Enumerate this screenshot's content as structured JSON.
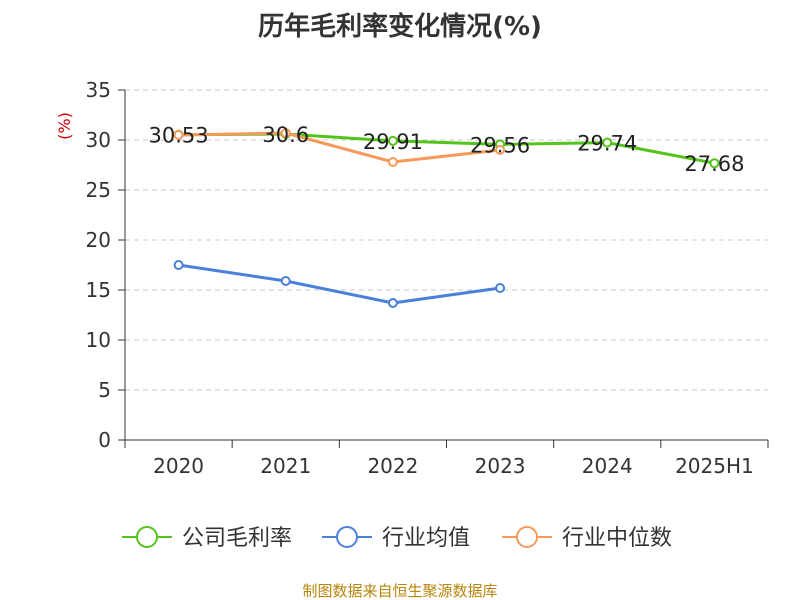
{
  "chart_data": {
    "type": "line",
    "title": "历年毛利率变化情况(%)",
    "ylabel": "(%)",
    "xlabel": "",
    "categories": [
      "2020",
      "2021",
      "2022",
      "2023",
      "2024",
      "2025H1"
    ],
    "ylim": [
      0,
      35
    ],
    "yticks": [
      0,
      5,
      10,
      15,
      20,
      25,
      30,
      35
    ],
    "grid": true,
    "legend_position": "bottom",
    "series": [
      {
        "name": "公司毛利率",
        "color": "#52c41a",
        "values": [
          30.53,
          30.6,
          29.91,
          29.56,
          29.74,
          27.68
        ],
        "show_labels": true
      },
      {
        "name": "行业均值",
        "color": "#4a7fdc",
        "values": [
          17.5,
          15.9,
          13.7,
          15.2,
          null,
          null
        ],
        "show_labels": false
      },
      {
        "name": "行业中位数",
        "color": "#f59a5b",
        "values": [
          30.5,
          30.7,
          27.8,
          29.0,
          null,
          null
        ],
        "show_labels": false
      }
    ]
  },
  "footer": "制图数据来自恒生聚源数据库"
}
